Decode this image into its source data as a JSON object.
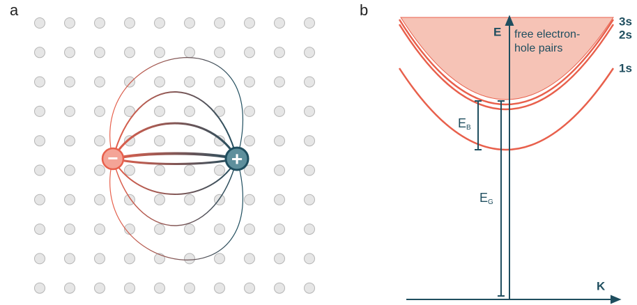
{
  "panel_a": {
    "label": "a",
    "minus": "−",
    "plus": "+"
  },
  "panel_b": {
    "label": "b",
    "energy_axis": "E",
    "momentum_axis": "K",
    "continuum_label": [
      "free electron-",
      "hole pairs"
    ],
    "levels": [
      "3s",
      "2s",
      "1s"
    ],
    "binding_energy": {
      "symbol": "E",
      "subscript": "B"
    },
    "band_gap": {
      "symbol": "E",
      "subscript": "G"
    }
  }
}
